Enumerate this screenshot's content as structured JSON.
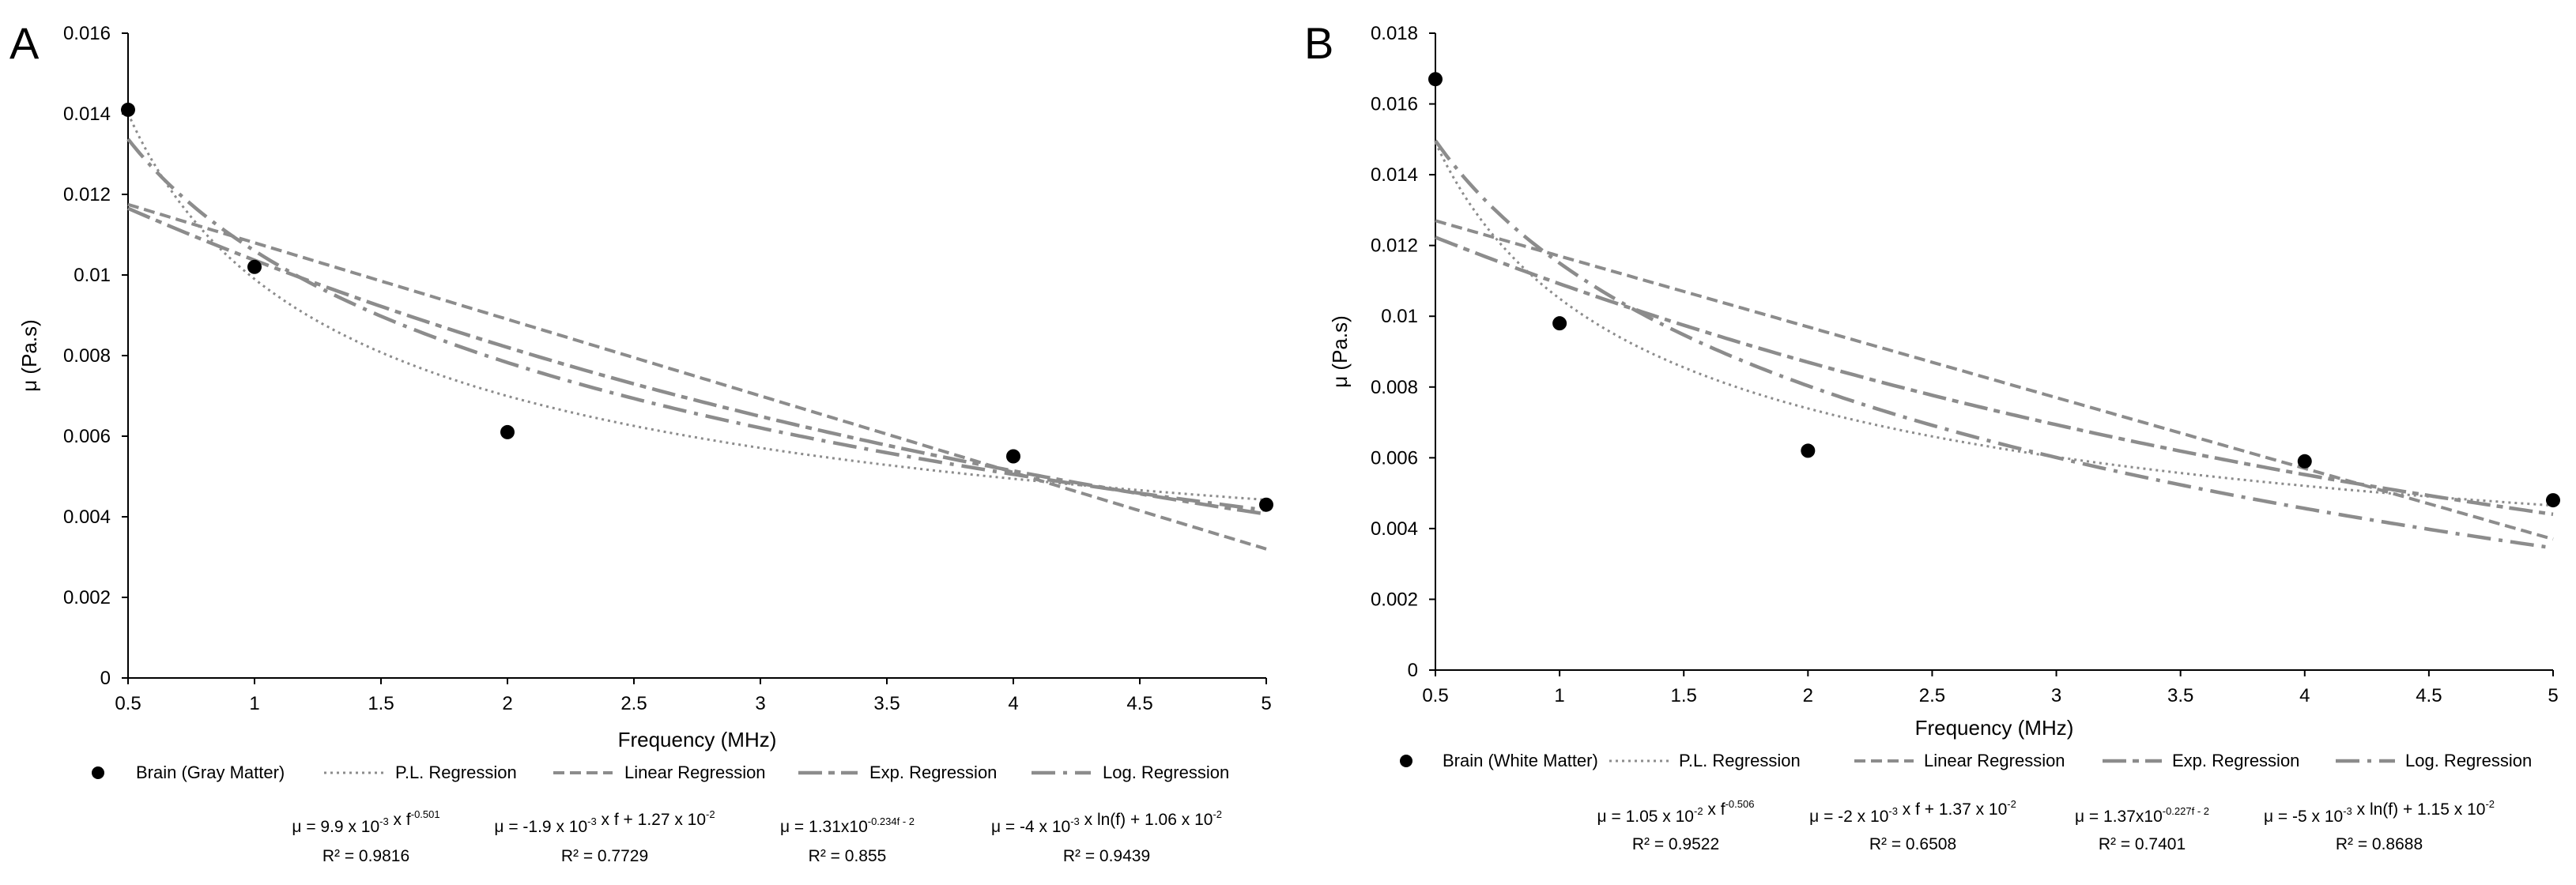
{
  "colors": {
    "curve": "#8c8c8c",
    "axis": "#000000",
    "point": "#000000"
  },
  "legend_labels": [
    "P.L. Regression",
    "Linear Regression",
    "Exp. Regression",
    "Log. Regression"
  ],
  "chart_data": [
    {
      "panel": "A",
      "type": "scatter",
      "title": "",
      "xlabel": "Frequency (MHz)",
      "ylabel": "μ (Pa.s)",
      "xlim": [
        0.5,
        5
      ],
      "ylim": [
        0,
        0.016
      ],
      "xticks": [
        0.5,
        1,
        1.5,
        2,
        2.5,
        3,
        3.5,
        4,
        4.5,
        5
      ],
      "xtick_labels": [
        "0.5",
        "1",
        "1.5",
        "2",
        "2.5",
        "3",
        "3.5",
        "4",
        "4.5",
        "5"
      ],
      "yticks": [
        0,
        0.002,
        0.004,
        0.006,
        0.008,
        0.01,
        0.012,
        0.014,
        0.016
      ],
      "ytick_labels": [
        "0",
        "0.002",
        "0.004",
        "0.006",
        "0.008",
        "0.01",
        "0.012",
        "0.014",
        "0.016"
      ],
      "series_name": "Brain (Gray Matter)",
      "points": [
        {
          "x": 0.5,
          "y": 0.0141
        },
        {
          "x": 1,
          "y": 0.0102
        },
        {
          "x": 2,
          "y": 0.0061
        },
        {
          "x": 4,
          "y": 0.0055
        },
        {
          "x": 5,
          "y": 0.0043
        }
      ],
      "fits": {
        "pl": {
          "a": 0.0099,
          "b": -0.501
        },
        "linear": {
          "m": -0.0019,
          "c": 0.0127
        },
        "exp": {
          "a": 0.0131,
          "k": 0.234
        },
        "log": {
          "a": -0.004,
          "c": 0.0106
        }
      },
      "equations": [
        {
          "base": "μ = 9.9 x 10",
          "exp1": "-3",
          "mid": " x f",
          "exp2": "-0.501",
          "tail": "",
          "r2": "R² = 0.9816"
        },
        {
          "base": "μ = -1.9 x 10",
          "exp1": "-3",
          "mid": " x f + 1.27 x 10",
          "exp2": "-2",
          "tail": "",
          "r2": "R² = 0.7729"
        },
        {
          "base": "μ = 1.31x10",
          "exp1": "-0.234f - 2",
          "mid": "",
          "exp2": "",
          "tail": "",
          "r2": "R² = 0.855"
        },
        {
          "base": "μ = -4 x 10",
          "exp1": "-3",
          "mid": " x ln(f) + 1.06 x 10",
          "exp2": "-2",
          "tail": "",
          "r2": "R² = 0.9439"
        }
      ]
    },
    {
      "panel": "B",
      "type": "scatter",
      "title": "",
      "xlabel": "Frequency (MHz)",
      "ylabel": "μ (Pa.s)",
      "xlim": [
        0.5,
        5
      ],
      "ylim": [
        0,
        0.018
      ],
      "xticks": [
        0.5,
        1,
        1.5,
        2,
        2.5,
        3,
        3.5,
        4,
        4.5,
        5
      ],
      "xtick_labels": [
        "0.5",
        "1",
        "1.5",
        "2",
        "2.5",
        "3",
        "3.5",
        "4",
        "4.5",
        "5"
      ],
      "yticks": [
        0,
        0.002,
        0.004,
        0.006,
        0.008,
        0.01,
        0.012,
        0.014,
        0.016,
        0.018
      ],
      "ytick_labels": [
        "0",
        "0.002",
        "0.004",
        "0.006",
        "0.008",
        "0.01",
        "0.012",
        "0.014",
        "0.016",
        "0.018"
      ],
      "series_name": "Brain (White Matter)",
      "points": [
        {
          "x": 0.5,
          "y": 0.0167
        },
        {
          "x": 1,
          "y": 0.0098
        },
        {
          "x": 2,
          "y": 0.0062
        },
        {
          "x": 4,
          "y": 0.0059
        },
        {
          "x": 5,
          "y": 0.0048
        }
      ],
      "fits": {
        "pl": {
          "a": 0.0105,
          "b": -0.506
        },
        "linear": {
          "m": -0.002,
          "c": 0.0137
        },
        "exp": {
          "a": 0.0137,
          "k": 0.227
        },
        "log": {
          "a": -0.005,
          "c": 0.0115
        }
      },
      "equations": [
        {
          "base": "μ = 1.05 x 10",
          "exp1": "-2",
          "mid": " x f",
          "exp2": "-0.506",
          "tail": "",
          "r2": "R² = 0.9522"
        },
        {
          "base": "μ = -2 x 10",
          "exp1": "-3",
          "mid": " x f + 1.37 x 10",
          "exp2": "-2",
          "tail": "",
          "r2": "R² = 0.6508"
        },
        {
          "base": "μ = 1.37x10",
          "exp1": "-0.227f - 2",
          "mid": "",
          "exp2": "",
          "tail": "",
          "r2": "R² = 0.7401"
        },
        {
          "base": "μ = -5 x 10",
          "exp1": "-3",
          "mid": " x ln(f) + 1.15 x 10",
          "exp2": "-2",
          "tail": "",
          "r2": "R² = 0.8688"
        }
      ]
    }
  ]
}
